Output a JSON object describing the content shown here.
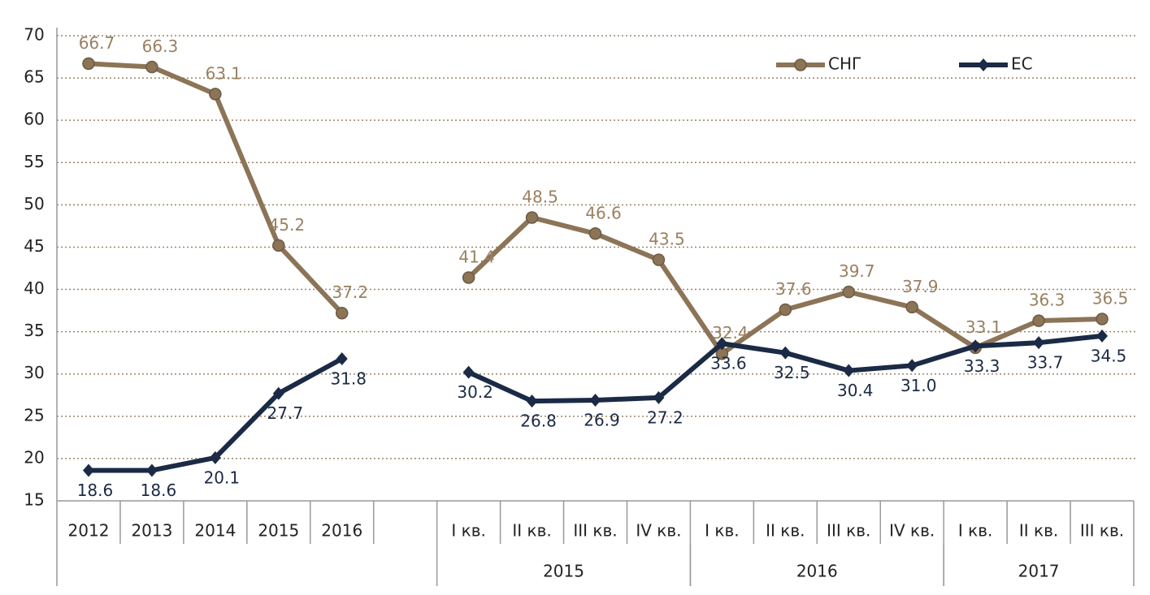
{
  "chart_data": {
    "type": "line",
    "categories": [
      "2012",
      "2013",
      "2014",
      "2015",
      "2016",
      null,
      "I кв.",
      "II кв.",
      "III кв.",
      "IV кв.",
      "I кв.",
      "II кв.",
      "III кв.",
      "IV кв.",
      "I кв.",
      "II кв.",
      "III кв."
    ],
    "groups": [
      "2015",
      "2016",
      "2017"
    ],
    "category_group": [
      null,
      null,
      null,
      null,
      null,
      null,
      0,
      0,
      0,
      0,
      1,
      1,
      1,
      1,
      2,
      2,
      2
    ],
    "series": [
      {
        "name": "СНГ",
        "color": "#8c7457",
        "marker": "circle",
        "values": [
          66.7,
          66.3,
          63.1,
          45.2,
          37.2,
          null,
          41.4,
          48.5,
          46.6,
          43.5,
          32.4,
          37.6,
          39.7,
          37.9,
          33.1,
          36.3,
          36.5
        ]
      },
      {
        "name": "ЕС",
        "color": "#1b2a45",
        "marker": "diamond",
        "values": [
          18.6,
          18.6,
          20.1,
          27.7,
          31.8,
          null,
          30.2,
          26.8,
          26.9,
          27.2,
          33.6,
          32.5,
          30.4,
          31.0,
          33.3,
          33.7,
          34.5
        ],
        "value_labels": [
          "18.6",
          "18.6",
          "20.1",
          "27.7",
          "31.8",
          null,
          "30.2",
          "26.8",
          "26.9",
          "27.2",
          "33.6",
          "32.5",
          "30.4",
          "31.0",
          "33.3",
          "33.7",
          "34.5"
        ]
      }
    ],
    "ylim": [
      15,
      70
    ],
    "yticks": [
      15,
      20,
      25,
      30,
      35,
      40,
      45,
      50,
      55,
      60,
      65,
      70
    ],
    "grid": true,
    "legend": "top-right"
  }
}
